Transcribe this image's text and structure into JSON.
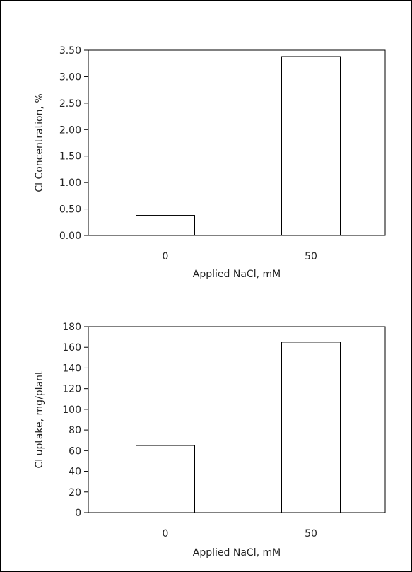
{
  "chart_data": [
    {
      "type": "bar",
      "categories": [
        "0",
        "50"
      ],
      "values": [
        0.38,
        3.38
      ],
      "title": "",
      "xlabel": "Applied NaCl, mM",
      "ylabel": "Cl Concentration, %",
      "ylim": [
        0,
        3.5
      ],
      "yticks": [
        "0.00",
        "0.50",
        "1.00",
        "1.50",
        "2.00",
        "2.50",
        "3.00",
        "3.50"
      ],
      "grid": false
    },
    {
      "type": "bar",
      "categories": [
        "0",
        "50"
      ],
      "values": [
        65,
        165
      ],
      "title": "",
      "xlabel": "Applied NaCl, mM",
      "ylabel": "Cl uptake, mg/plant",
      "ylim": [
        0,
        180
      ],
      "yticks": [
        "0",
        "20",
        "40",
        "60",
        "80",
        "100",
        "120",
        "140",
        "160",
        "180"
      ],
      "grid": false
    }
  ]
}
